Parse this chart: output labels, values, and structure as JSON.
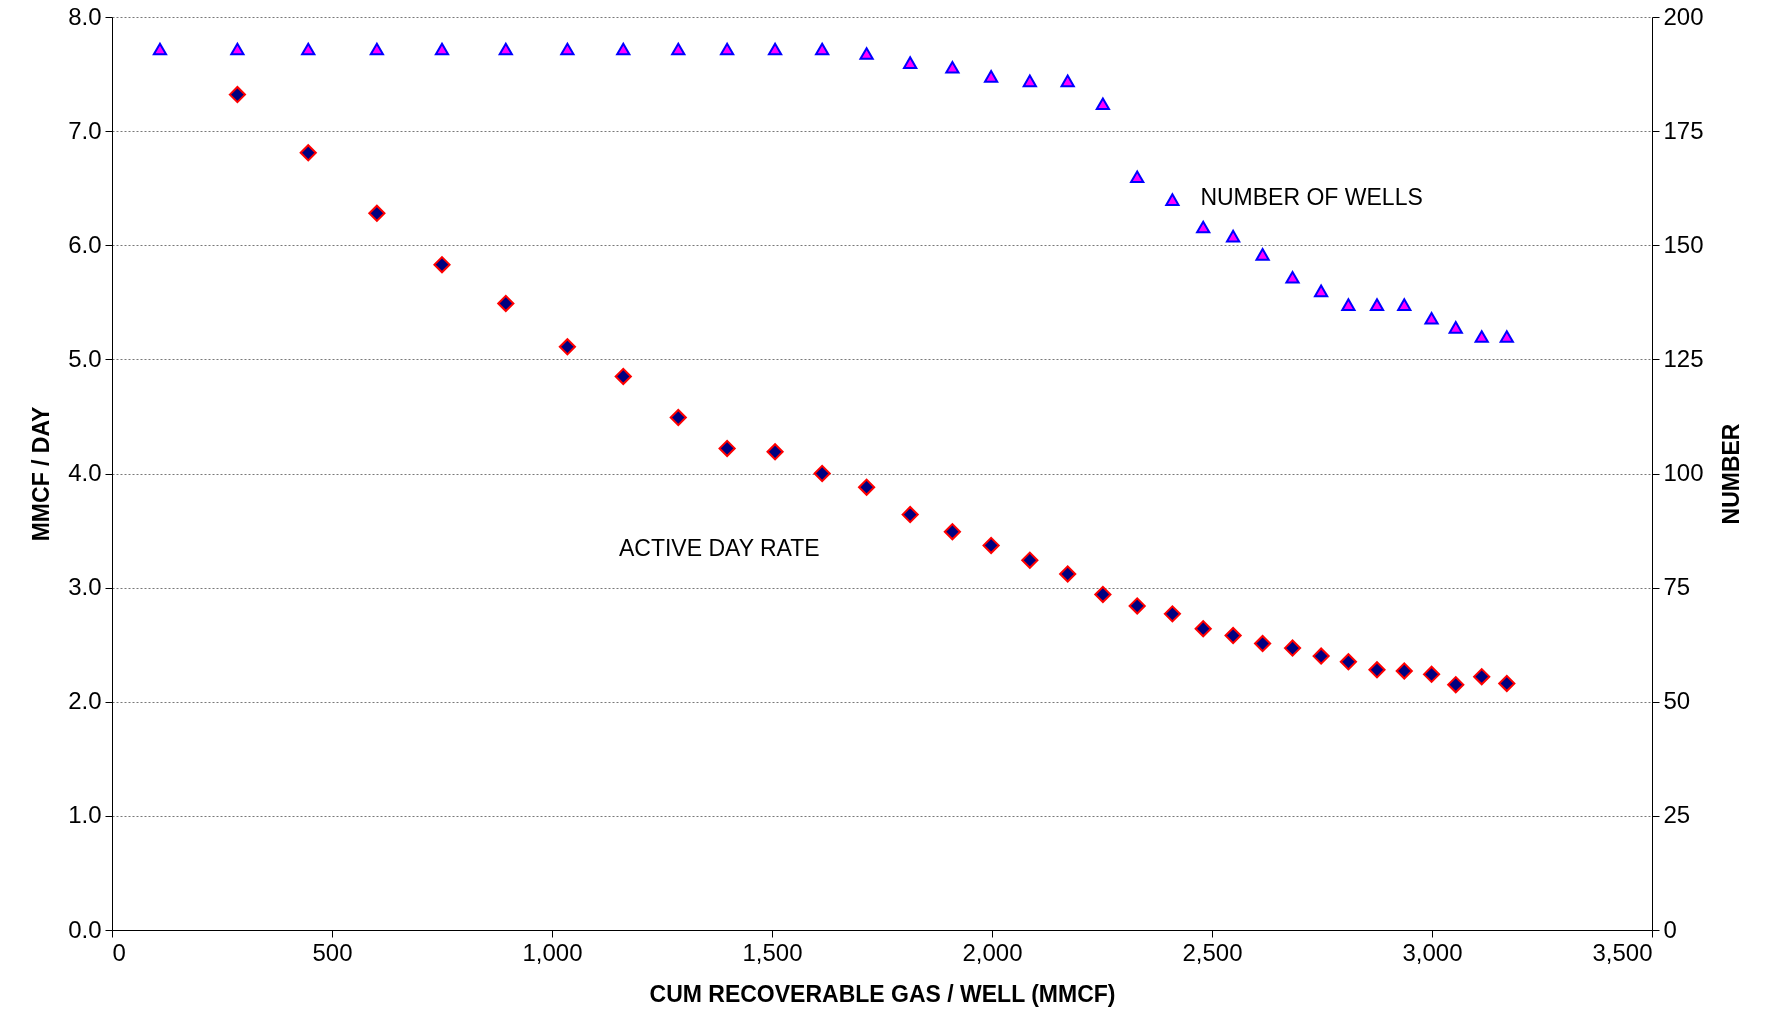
{
  "chart_data": {
    "type": "scatter",
    "xlabel": "CUM RECOVERABLE GAS / WELL (MMCF)",
    "ylabel": "MMCF / DAY",
    "y2label": "NUMBER",
    "xlim": [
      0,
      3500
    ],
    "xticks": [
      0,
      500,
      {
        "value": 1000,
        "label": "1,000"
      },
      {
        "value": 1500,
        "label": "1,500"
      },
      {
        "value": 2000,
        "label": "2,000"
      },
      {
        "value": 2500,
        "label": "2,500"
      },
      {
        "value": 3000,
        "label": "3,000"
      },
      {
        "value": 3500,
        "label": "3,500"
      }
    ],
    "ylim": [
      0,
      8
    ],
    "yticks": [
      {
        "value": 0,
        "label": "0.0"
      },
      {
        "value": 1,
        "label": "1.0"
      },
      {
        "value": 2,
        "label": "2.0"
      },
      {
        "value": 3,
        "label": "3.0"
      },
      {
        "value": 4,
        "label": "4.0"
      },
      {
        "value": 5,
        "label": "5.0"
      },
      {
        "value": 6,
        "label": "6.0"
      },
      {
        "value": 7,
        "label": "7.0"
      },
      {
        "value": 8,
        "label": "8.0"
      }
    ],
    "y2lim": [
      0,
      200
    ],
    "y2ticks": [
      0,
      25,
      50,
      75,
      100,
      125,
      150,
      175,
      200
    ],
    "grid": "y",
    "series": [
      {
        "name": "NUMBER OF WELLS",
        "color": "#0000ff",
        "marker": "triangle",
        "axis": "y2",
        "x": [
          109,
          285,
          446,
          602,
          750,
          895,
          1035,
          1162,
          1287,
          1398,
          1507,
          1614,
          1715,
          1814,
          1910,
          1998,
          2086,
          2172,
          2252,
          2330,
          2410,
          2480,
          2548,
          2615,
          2683,
          2748,
          2810,
          2875,
          2937,
          2999,
          3054,
          3113,
          3170
        ],
        "values": [
          193,
          193,
          193,
          193,
          193,
          193,
          193,
          193,
          193,
          193,
          193,
          193,
          192,
          190,
          189,
          187,
          186,
          186,
          181,
          165,
          160,
          154,
          152,
          148,
          143,
          140,
          137,
          137,
          137,
          134,
          132,
          130,
          130
        ]
      },
      {
        "name": "ACTIVE DAY RATE",
        "color": "#000080",
        "marker": "diamond",
        "x": [
          285,
          446,
          602,
          750,
          895,
          1035,
          1162,
          1287,
          1398,
          1507,
          1614,
          1715,
          1814,
          1910,
          1998,
          2086,
          2172,
          2252,
          2330,
          2410,
          2480,
          2548,
          2615,
          2683,
          2748,
          2810,
          2875,
          2937,
          2999,
          3054,
          3113,
          3170
        ],
        "values": [
          7.32,
          6.81,
          6.28,
          5.83,
          5.49,
          5.11,
          4.85,
          4.49,
          4.22,
          4.19,
          4.0,
          3.88,
          3.64,
          3.49,
          3.37,
          3.24,
          3.12,
          2.94,
          2.84,
          2.77,
          2.64,
          2.58,
          2.51,
          2.47,
          2.4,
          2.35,
          2.28,
          2.27,
          2.24,
          2.15,
          2.22,
          2.16
        ]
      }
    ]
  }
}
